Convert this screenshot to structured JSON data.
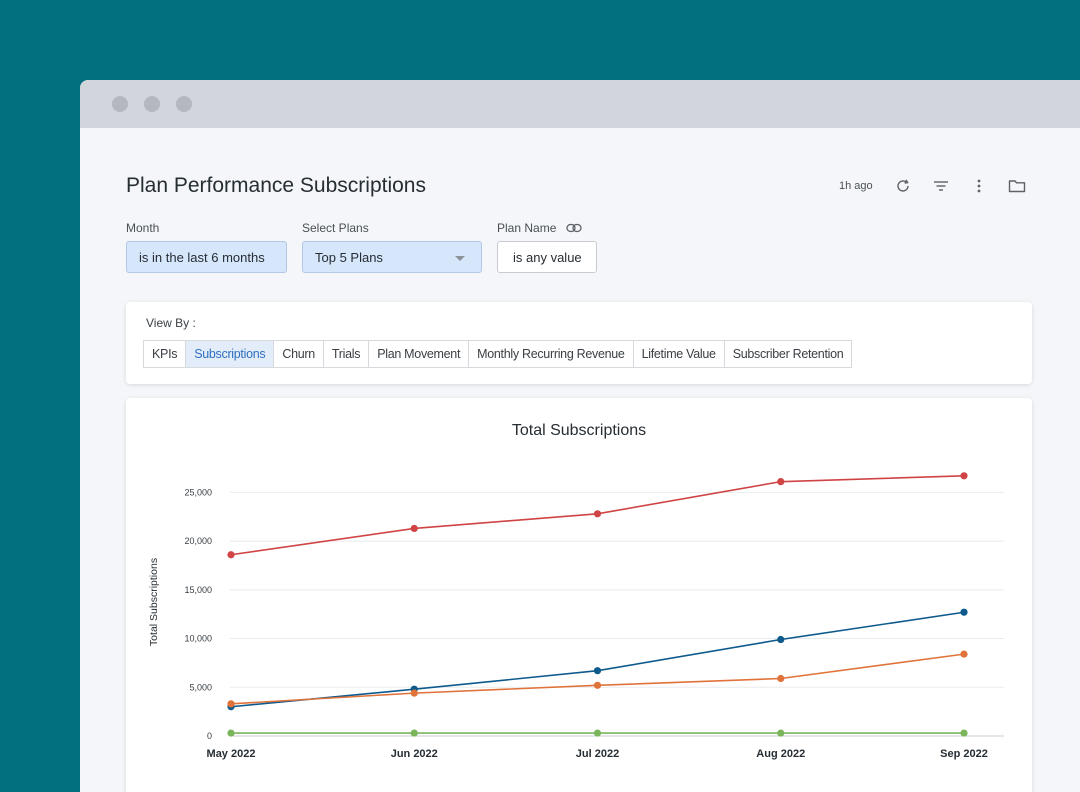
{
  "window": {
    "title": "Plan Performance Subscriptions"
  },
  "toolbar": {
    "updated": "1h ago",
    "icons": [
      "refresh-icon",
      "filter-icon",
      "more-vertical-icon",
      "folder-icon"
    ]
  },
  "filters": [
    {
      "label": "Month",
      "value": "is in the last 6 months",
      "active": true
    },
    {
      "label": "Select Plans",
      "value": "Top 5 Plans",
      "active": true,
      "dropdown": true
    },
    {
      "label": "Plan Name",
      "value": "is any value",
      "active": false,
      "link_icon": "link-icon"
    }
  ],
  "view_by": {
    "label": "View By :",
    "tabs": [
      "KPIs",
      "Subscriptions",
      "Churn",
      "Trials",
      "Plan Movement",
      "Monthly Recurring Revenue",
      "Lifetime Value",
      "Subscriber Retention"
    ],
    "active": "Subscriptions"
  },
  "chart_data": {
    "type": "line",
    "title": "Total Subscriptions",
    "xlabel": "",
    "ylabel": "Total Subscriptions",
    "categories": [
      "May 2022",
      "Jun 2022",
      "Jul 2022",
      "Aug 2022",
      "Sep 2022"
    ],
    "ylim": [
      0,
      27500
    ],
    "yticks": [
      0,
      5000,
      10000,
      15000,
      20000,
      25000
    ],
    "ytick_labels": [
      "0",
      "5,000",
      "10,000",
      "15,000",
      "20,000",
      "25,000"
    ],
    "grid": true,
    "legend": "none",
    "series": [
      {
        "color": "#d04445",
        "values": [
          18600,
          21300,
          22800,
          26100,
          26700
        ]
      },
      {
        "color": "#0f5a8c",
        "values": [
          3000,
          4800,
          6700,
          9900,
          12700
        ]
      },
      {
        "color": "#e0733a",
        "values": [
          3300,
          4400,
          5200,
          5900,
          8400
        ]
      },
      {
        "color": "#7ab55c",
        "values": [
          300,
          300,
          300,
          300,
          300
        ]
      }
    ]
  }
}
